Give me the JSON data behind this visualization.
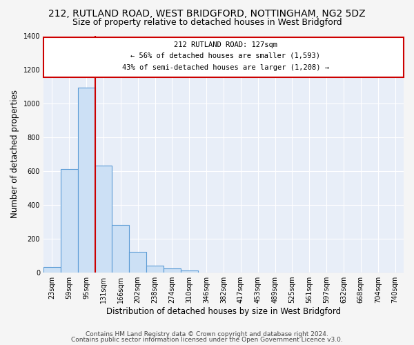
{
  "title": "212, RUTLAND ROAD, WEST BRIDGFORD, NOTTINGHAM, NG2 5DZ",
  "subtitle": "Size of property relative to detached houses in West Bridgford",
  "xlabel": "Distribution of detached houses by size in West Bridgford",
  "ylabel": "Number of detached properties",
  "bar_color": "#cce0f5",
  "bar_edge_color": "#5b9bd5",
  "background_color": "#e8eef8",
  "grid_color": "#ffffff",
  "annotation_box_color": "#cc0000",
  "vline_color": "#cc0000",
  "categories": [
    "23sqm",
    "59sqm",
    "95sqm",
    "131sqm",
    "166sqm",
    "202sqm",
    "238sqm",
    "274sqm",
    "310sqm",
    "346sqm",
    "382sqm",
    "417sqm",
    "453sqm",
    "489sqm",
    "525sqm",
    "561sqm",
    "597sqm",
    "632sqm",
    "668sqm",
    "704sqm",
    "740sqm"
  ],
  "values": [
    30,
    610,
    1090,
    630,
    280,
    120,
    40,
    22,
    10,
    0,
    0,
    0,
    0,
    0,
    0,
    0,
    0,
    0,
    0,
    0,
    0
  ],
  "ylim": [
    0,
    1400
  ],
  "yticks": [
    0,
    200,
    400,
    600,
    800,
    1000,
    1200,
    1400
  ],
  "property_label": "212 RUTLAND ROAD: 127sqm",
  "annotation_line1": "← 56% of detached houses are smaller (1,593)",
  "annotation_line2": "43% of semi-detached houses are larger (1,208) →",
  "vline_x_index": 2.5,
  "footer_line1": "Contains HM Land Registry data © Crown copyright and database right 2024.",
  "footer_line2": "Contains public sector information licensed under the Open Government Licence v3.0.",
  "title_fontsize": 10,
  "subtitle_fontsize": 9,
  "axis_label_fontsize": 8.5,
  "tick_fontsize": 7,
  "annotation_fontsize": 7.5,
  "footer_fontsize": 6.5
}
